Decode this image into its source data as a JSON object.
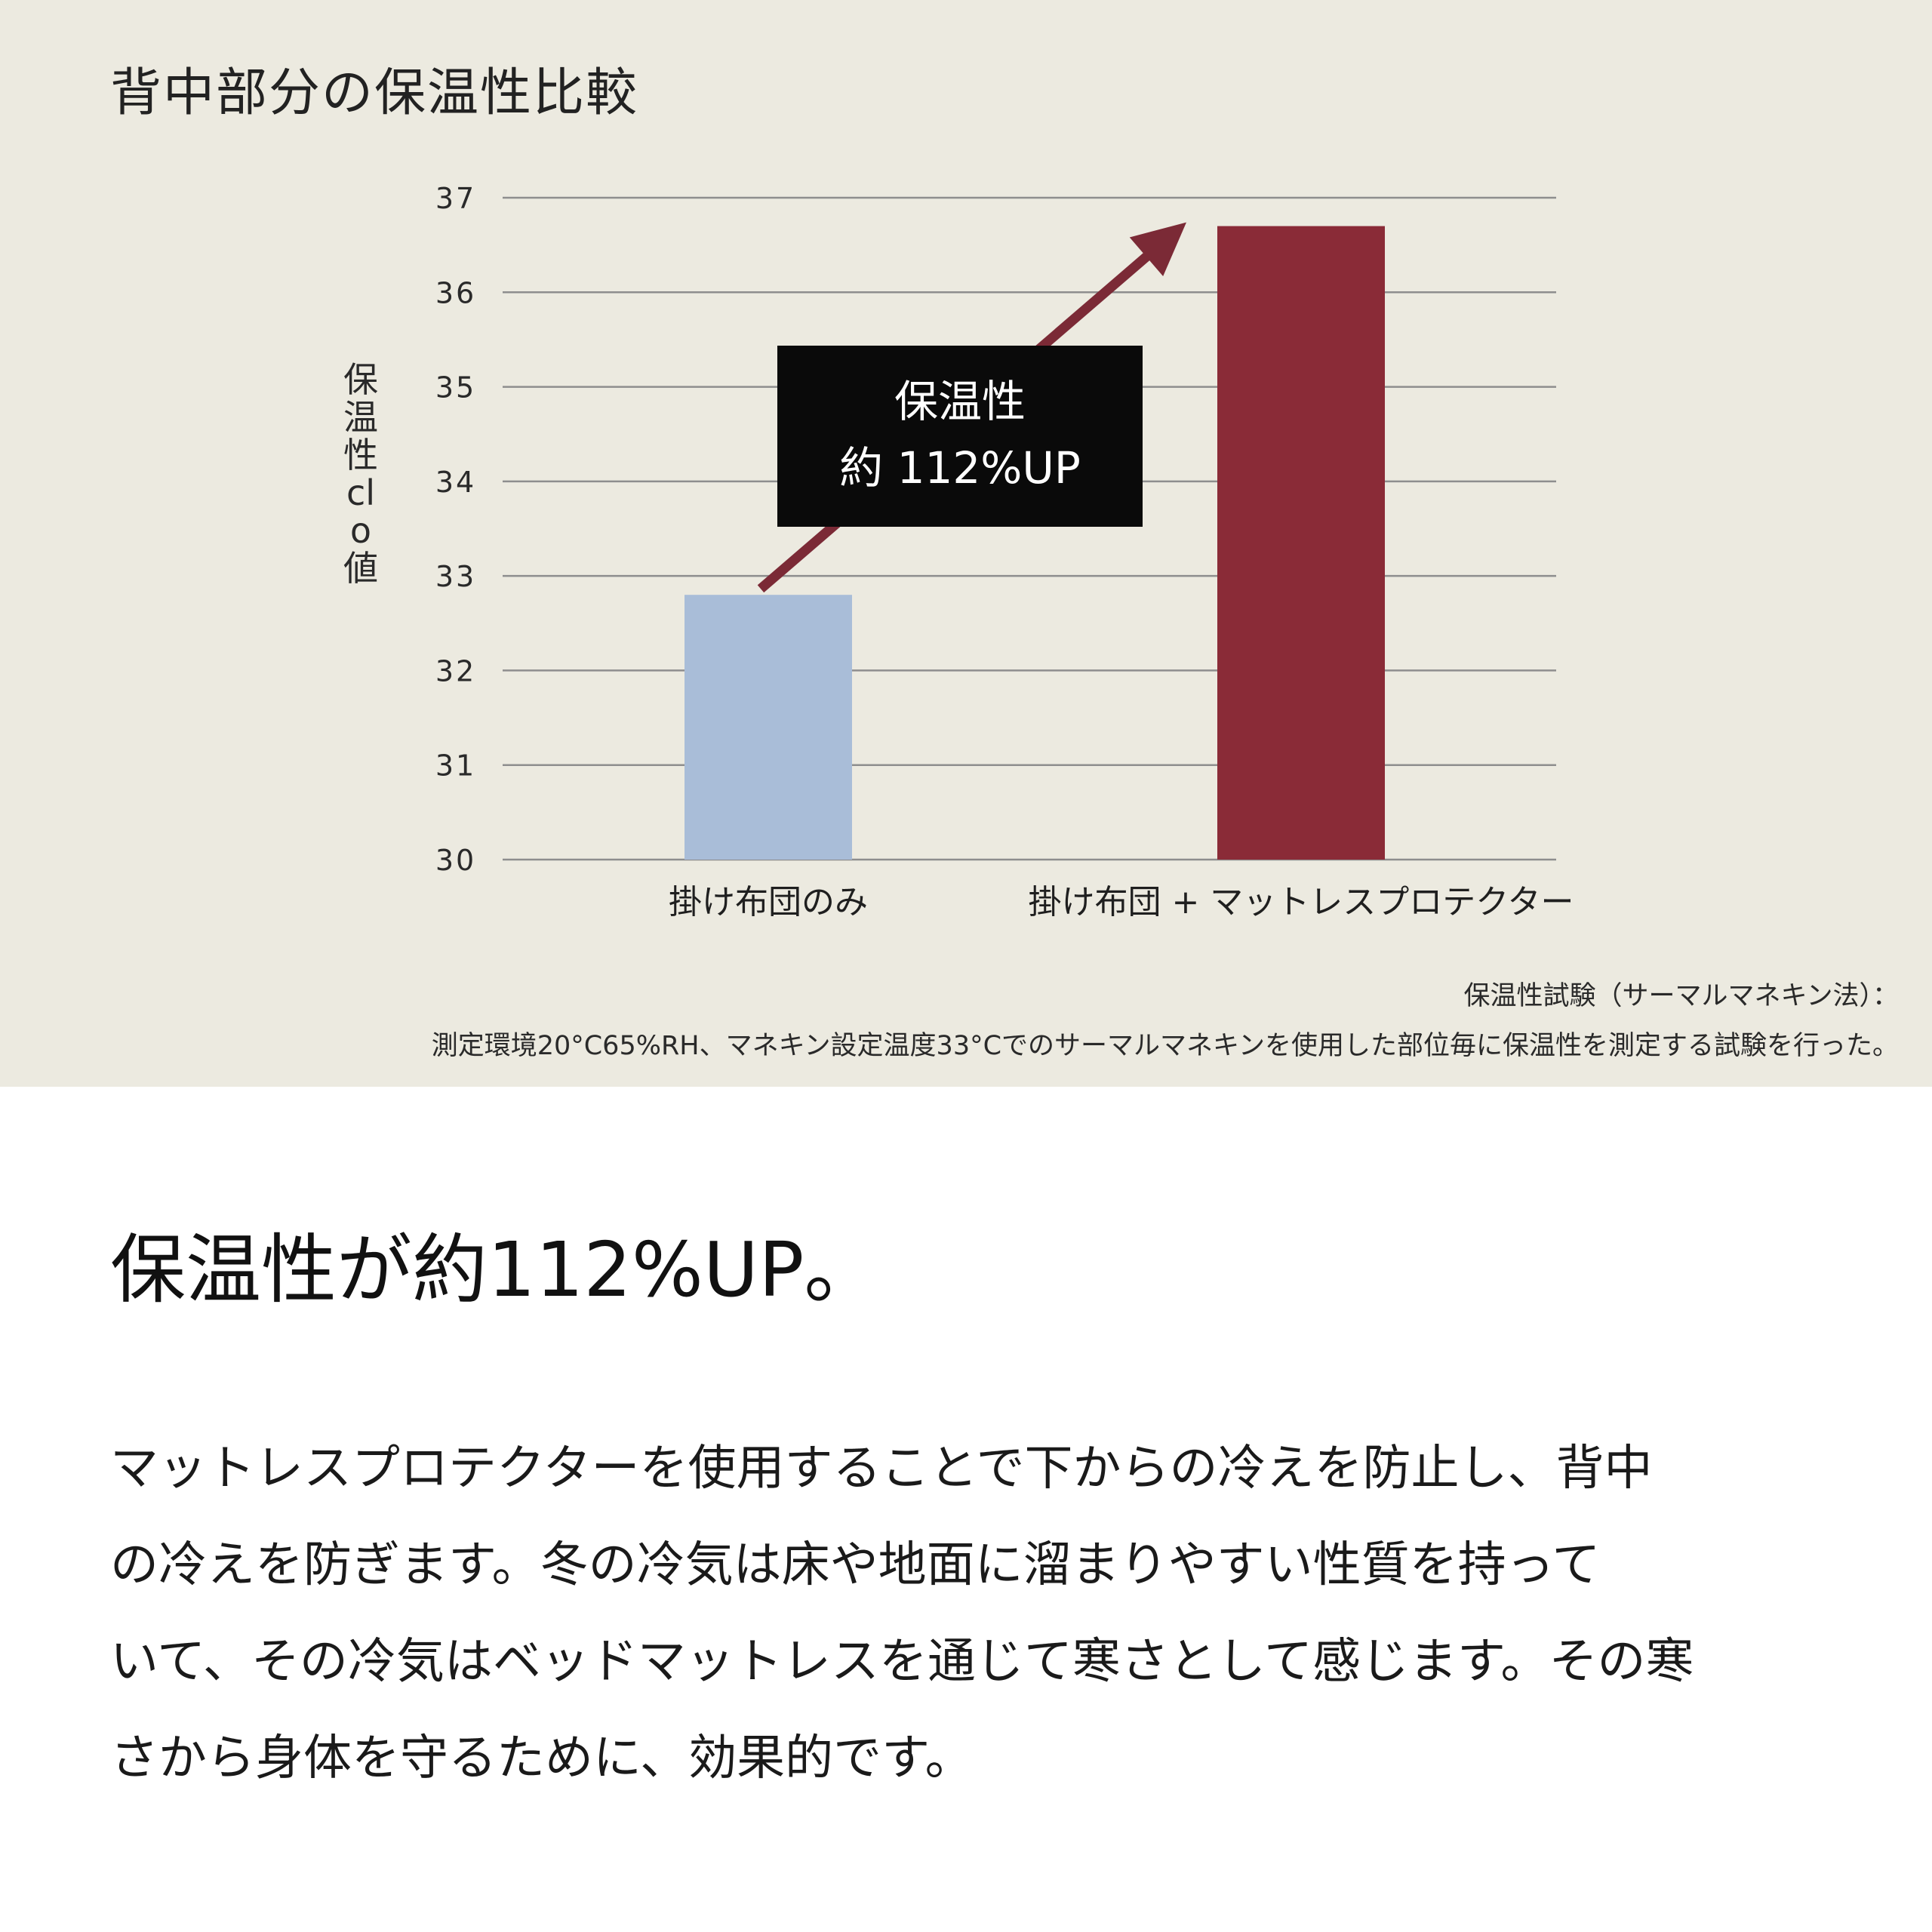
{
  "chart_data": {
    "type": "bar",
    "title": "背中部分の保温性比較",
    "ylabel": "保温性clo値",
    "ylim": [
      30,
      37
    ],
    "yticks": [
      37,
      36,
      35,
      34,
      33,
      32,
      31,
      30
    ],
    "grid": true,
    "categories": [
      "掛け布団のみ",
      "掛け布団 + マットレスプロテクター"
    ],
    "values": [
      32.8,
      36.7
    ],
    "colors": [
      "#a9bdd8",
      "#8a2b37"
    ],
    "arrow_color": "#7b2a36",
    "annotation": {
      "line1": "保温性",
      "line2": "約 112%UP"
    }
  },
  "notes": {
    "line1": "保温性試験（サーマルマネキン法）：",
    "line2": "測定環境20°C65%RH、マネキン設定温度33°Cでのサーマルマネキンを使用した部位毎に保温性を測定する試験を行った。"
  },
  "headline": "保温性が約112%UP。",
  "body_lines": [
    "マットレスプロテクターを使用することで下からの冷えを防止し、背中",
    "の冷えを防ぎます。冬の冷気は床や地面に溜まりやすい性質を持って",
    "いて、その冷気はベッドマットレスを通じて寒さとして感じます。その寒",
    "さから身体を守るために、効果的です。"
  ]
}
